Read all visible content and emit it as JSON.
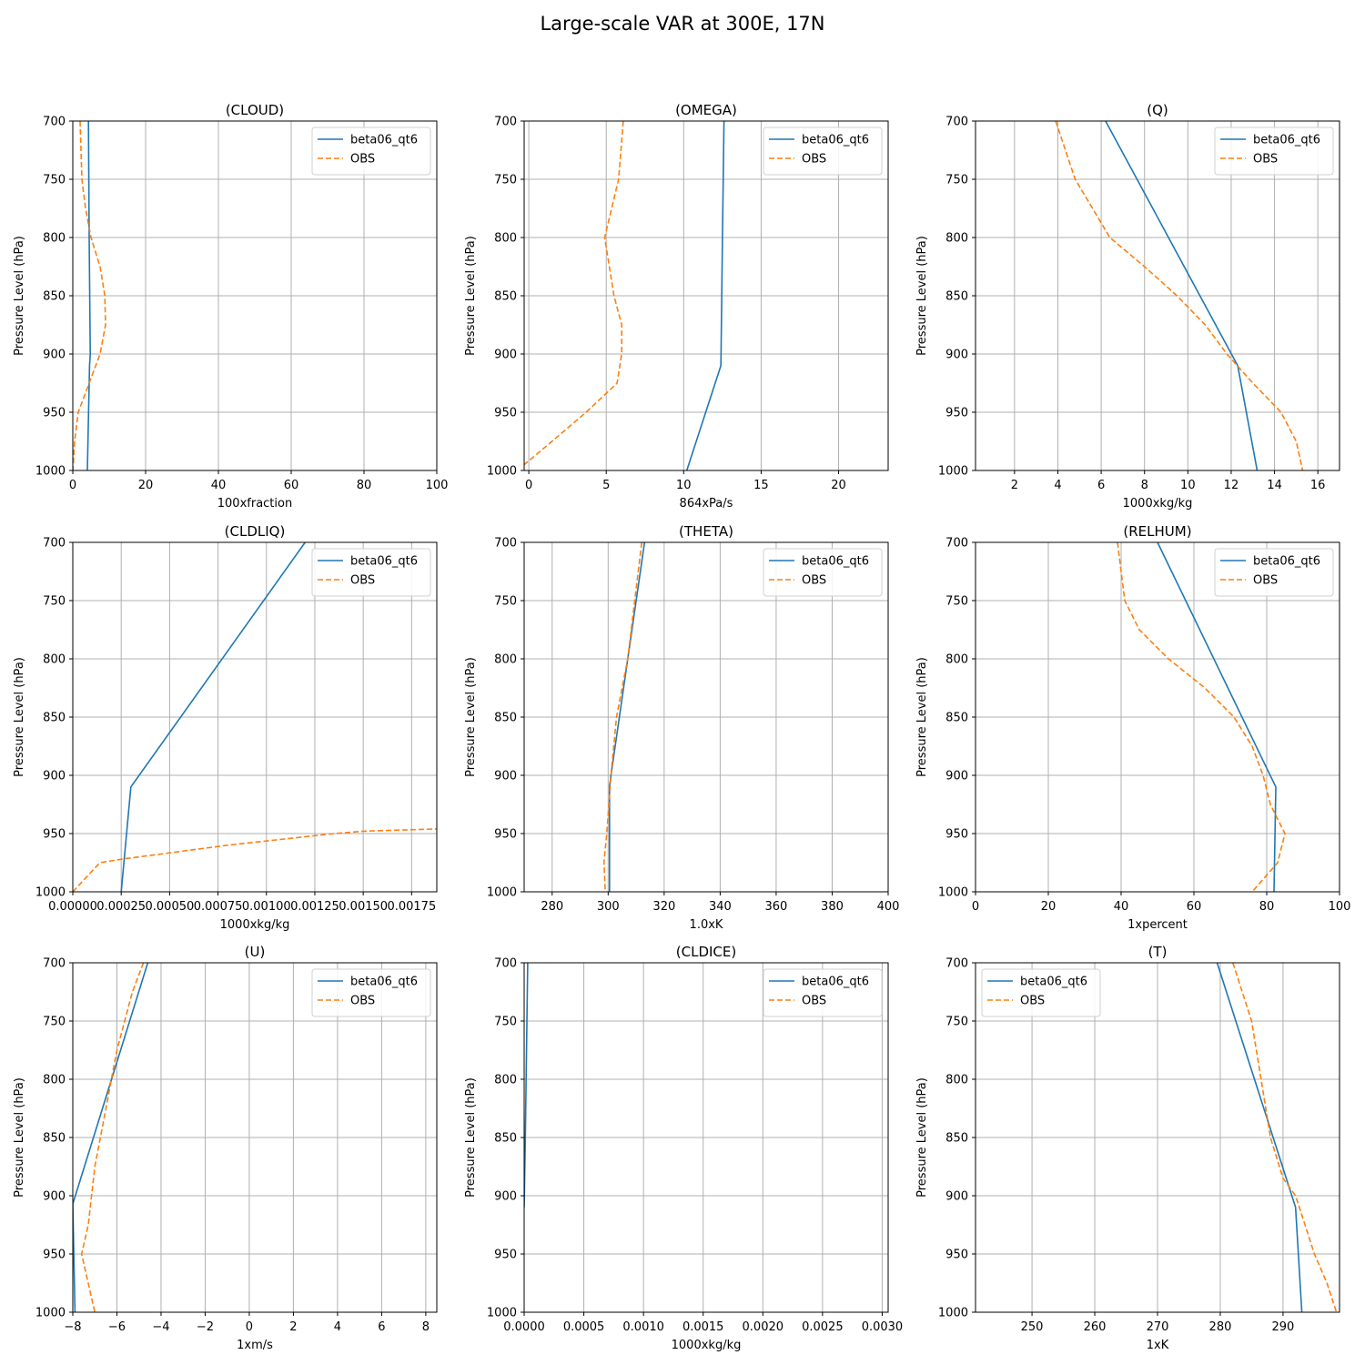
{
  "figure_title": "Large-scale VAR at 300E, 17N",
  "y_axis_label": "Pressure Level (hPa)",
  "y_range": [
    700,
    1000
  ],
  "y_ticks": [
    "700",
    "750",
    "800",
    "850",
    "900",
    "950",
    "1000"
  ],
  "colors": {
    "model": "#1f77b4",
    "obs": "#ff7f0e",
    "grid": "#b0b0b0"
  },
  "chart_data": [
    {
      "type": "line",
      "title": "(CLOUD)",
      "xlabel": "100xfraction",
      "xlim": [
        0,
        100
      ],
      "legend": "top-right",
      "x_ticks": [
        "0",
        "20",
        "40",
        "60",
        "80",
        "100"
      ],
      "x_tick_values": [
        0,
        20,
        40,
        60,
        80,
        100
      ],
      "series": [
        {
          "name": "beta06_qt6",
          "style": "solid",
          "points": [
            [
              4.3,
              700
            ],
            [
              4.5,
              800
            ],
            [
              4.8,
              900
            ],
            [
              4.6,
              910
            ],
            [
              4.0,
              1000
            ]
          ]
        },
        {
          "name": "OBS",
          "style": "dashed",
          "points": [
            [
              2,
              700
            ],
            [
              2.5,
              750
            ],
            [
              3.5,
              775
            ],
            [
              5,
              800
            ],
            [
              7.5,
              825
            ],
            [
              8.8,
              850
            ],
            [
              9,
              875
            ],
            [
              7.5,
              900
            ],
            [
              4.5,
              925
            ],
            [
              1.5,
              950
            ],
            [
              0.5,
              975
            ],
            [
              0,
              1000
            ]
          ]
        }
      ]
    },
    {
      "type": "line",
      "title": "(OMEGA)",
      "xlabel": "864xPa/s",
      "xlim": [
        -0.3,
        23.2
      ],
      "legend": "top-right",
      "x_ticks": [
        "0",
        "5",
        "10",
        "15",
        "20"
      ],
      "x_tick_values": [
        0,
        5,
        10,
        15,
        20
      ],
      "series": [
        {
          "name": "beta06_qt6",
          "style": "solid",
          "points": [
            [
              12.6,
              700
            ],
            [
              12.5,
              800
            ],
            [
              12.4,
              910
            ],
            [
              10.2,
              1000
            ]
          ]
        },
        {
          "name": "OBS",
          "style": "dashed",
          "points": [
            [
              6.1,
              700
            ],
            [
              5.8,
              750
            ],
            [
              4.9,
              800
            ],
            [
              5.5,
              850
            ],
            [
              6.0,
              875
            ],
            [
              6.0,
              900
            ],
            [
              5.7,
              925
            ],
            [
              3.7,
              950
            ],
            [
              1.5,
              975
            ],
            [
              -0.3,
              995
            ]
          ]
        }
      ]
    },
    {
      "type": "line",
      "title": "(Q)",
      "xlabel": "1000xkg/kg",
      "xlim": [
        0.2,
        17
      ],
      "legend": "top-right",
      "x_ticks": [
        "2",
        "4",
        "6",
        "8",
        "10",
        "12",
        "14",
        "16"
      ],
      "x_tick_values": [
        2,
        4,
        6,
        8,
        10,
        12,
        14,
        16
      ],
      "series": [
        {
          "name": "beta06_qt6",
          "style": "solid",
          "points": [
            [
              6.2,
              700
            ],
            [
              12.3,
              910
            ],
            [
              13.2,
              1000
            ]
          ]
        },
        {
          "name": "OBS",
          "style": "dashed",
          "points": [
            [
              3.9,
              700
            ],
            [
              4.8,
              750
            ],
            [
              5.6,
              775
            ],
            [
              6.4,
              800
            ],
            [
              8.0,
              825
            ],
            [
              9.5,
              850
            ],
            [
              10.8,
              875
            ],
            [
              11.8,
              900
            ],
            [
              13.0,
              925
            ],
            [
              14.3,
              950
            ],
            [
              15.0,
              975
            ],
            [
              15.3,
              1000
            ]
          ]
        }
      ]
    },
    {
      "type": "line",
      "title": "(CLDLIQ)",
      "xlabel": "1000xkg/kg",
      "xlim": [
        0,
        0.00188
      ],
      "legend": "top-right",
      "x_ticks": [
        "0.00000",
        "0.00025",
        "0.00050",
        "0.00075",
        "0.00100",
        "0.00125",
        "0.00150",
        "0.00175"
      ],
      "x_tick_values": [
        0,
        0.00025,
        0.0005,
        0.00075,
        0.001,
        0.00125,
        0.0015,
        0.00175
      ],
      "series": [
        {
          "name": "beta06_qt6",
          "style": "solid",
          "points": [
            [
              0.0012,
              700
            ],
            [
              0.0003,
              910
            ],
            [
              0.00025,
              1000
            ]
          ]
        },
        {
          "name": "OBS",
          "style": "dashed",
          "points": [
            [
              0,
              1000
            ],
            [
              0.00014,
              975
            ],
            [
              0.00025,
              972
            ],
            [
              0.0008,
              960
            ],
            [
              0.00135,
              950
            ],
            [
              0.0015,
              948
            ],
            [
              0.00188,
              946
            ]
          ]
        }
      ]
    },
    {
      "type": "line",
      "title": "(THETA)",
      "xlabel": "1.0xK",
      "xlim": [
        270,
        400
      ],
      "legend": "top-right",
      "x_ticks": [
        "280",
        "300",
        "320",
        "340",
        "360",
        "380",
        "400"
      ],
      "x_tick_values": [
        280,
        300,
        320,
        340,
        360,
        380,
        400
      ],
      "series": [
        {
          "name": "beta06_qt6",
          "style": "solid",
          "points": [
            [
              313,
              700
            ],
            [
              301,
              900
            ],
            [
              300.5,
              910
            ],
            [
              300.5,
              1000
            ]
          ]
        },
        {
          "name": "OBS",
          "style": "dashed",
          "points": [
            [
              312,
              700
            ],
            [
              307,
              800
            ],
            [
              303,
              850
            ],
            [
              301,
              900
            ],
            [
              299.5,
              950
            ],
            [
              298.5,
              975
            ],
            [
              299,
              1000
            ]
          ]
        }
      ]
    },
    {
      "type": "line",
      "title": "(RELHUM)",
      "xlabel": "1xpercent",
      "xlim": [
        0,
        100
      ],
      "legend": "top-right",
      "x_ticks": [
        "0",
        "20",
        "40",
        "60",
        "80",
        "100"
      ],
      "x_tick_values": [
        0,
        20,
        40,
        60,
        80,
        100
      ],
      "series": [
        {
          "name": "beta06_qt6",
          "style": "solid",
          "points": [
            [
              50,
              700
            ],
            [
              82.5,
              910
            ],
            [
              82,
              1000
            ]
          ]
        },
        {
          "name": "OBS",
          "style": "dashed",
          "points": [
            [
              39,
              700
            ],
            [
              41,
              750
            ],
            [
              45,
              775
            ],
            [
              53,
              800
            ],
            [
              63,
              825
            ],
            [
              71,
              850
            ],
            [
              76,
              875
            ],
            [
              79,
              900
            ],
            [
              81,
              925
            ],
            [
              85,
              950
            ],
            [
              83,
              975
            ],
            [
              76,
              1000
            ]
          ]
        }
      ]
    },
    {
      "type": "line",
      "title": "(U)",
      "xlabel": "1xm/s",
      "xlim": [
        -8,
        8.5
      ],
      "legend": "top-right",
      "x_ticks": [
        "−8",
        "−6",
        "−4",
        "−2",
        "0",
        "2",
        "4",
        "6",
        "8"
      ],
      "x_tick_values": [
        -8,
        -6,
        -4,
        -2,
        0,
        2,
        4,
        6,
        8
      ],
      "series": [
        {
          "name": "beta06_qt6",
          "style": "solid",
          "points": [
            [
              -4.6,
              700
            ],
            [
              -8,
              907
            ],
            [
              -7.9,
              1000
            ]
          ]
        },
        {
          "name": "OBS",
          "style": "dashed",
          "points": [
            [
              -4.8,
              700
            ],
            [
              -5.3,
              725
            ],
            [
              -6.0,
              775
            ],
            [
              -6.5,
              825
            ],
            [
              -7.0,
              875
            ],
            [
              -7.3,
              925
            ],
            [
              -7.6,
              950
            ],
            [
              -7.0,
              1000
            ]
          ]
        }
      ]
    },
    {
      "type": "line",
      "title": "(CLDICE)",
      "xlabel": "1000xkg/kg",
      "xlim": [
        0,
        0.00305
      ],
      "legend": "top-right",
      "x_ticks": [
        "0.0000",
        "0.0005",
        "0.0010",
        "0.0015",
        "0.0020",
        "0.0025",
        "0.0030"
      ],
      "x_tick_values": [
        0,
        0.0005,
        0.001,
        0.0015,
        0.002,
        0.0025,
        0.003
      ],
      "series": [
        {
          "name": "beta06_qt6",
          "style": "solid",
          "points": [
            [
              3e-05,
              700
            ],
            [
              1e-05,
              850
            ],
            [
              0,
              910
            ]
          ]
        },
        {
          "name": "OBS",
          "style": "dashed",
          "points": []
        }
      ]
    },
    {
      "type": "line",
      "title": "(T)",
      "xlabel": "1xK",
      "xlim": [
        241,
        299
      ],
      "legend": "top-left",
      "x_ticks": [
        "250",
        "260",
        "270",
        "280",
        "290"
      ],
      "x_tick_values": [
        250,
        260,
        270,
        280,
        290
      ],
      "series": [
        {
          "name": "beta06_qt6",
          "style": "solid",
          "points": [
            [
              279.5,
              700
            ],
            [
              292,
              910
            ],
            [
              293,
              1000
            ]
          ]
        },
        {
          "name": "OBS",
          "style": "dashed",
          "points": [
            [
              282,
              700
            ],
            [
              285,
              750
            ],
            [
              286.5,
              800
            ],
            [
              288,
              850
            ],
            [
              290,
              885
            ],
            [
              292,
              900
            ],
            [
              293.5,
              925
            ],
            [
              295,
              950
            ],
            [
              297,
              975
            ],
            [
              298.5,
              1000
            ]
          ]
        }
      ]
    }
  ]
}
